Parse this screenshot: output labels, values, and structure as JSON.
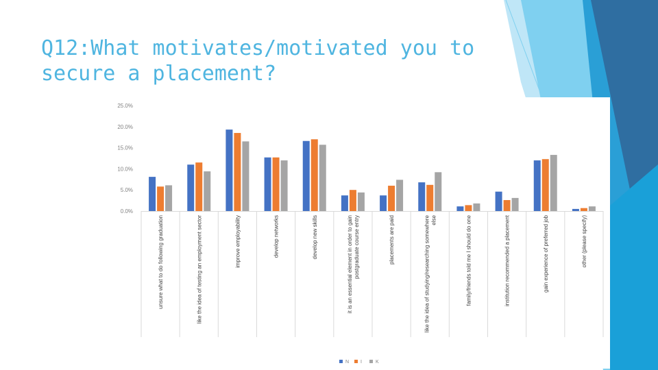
{
  "slide": {
    "title": "Q12:What motivates/motivated you to\nsecure a placement?"
  },
  "colors": {
    "title": "#4fb5e0",
    "decor_dark": "#2f6ea1",
    "decor_mid": "#2a9fd6",
    "decor_light": "#7fd0f0",
    "decor_pale": "#bfe6f7"
  },
  "chart_data": {
    "type": "bar",
    "title": "",
    "xlabel": "",
    "ylabel": "",
    "ylim": [
      0,
      25
    ],
    "yticks": [
      "0.0%",
      "5.0%",
      "10.0%",
      "15.0%",
      "20.0%",
      "25.0%"
    ],
    "grid": false,
    "legend_position": "bottom",
    "categories": [
      [
        "unsure what to do following graduation"
      ],
      [
        "like the idea of testing an employment sector"
      ],
      [
        "improve employability"
      ],
      [
        "develop networks"
      ],
      [
        "develop new skills"
      ],
      [
        "it is an essential element in order to gain",
        "postgraduate course entry"
      ],
      [
        "placements are paid"
      ],
      [
        "like the idea of studying/researching somewhere",
        "else"
      ],
      [
        "family/friends told me I should do one"
      ],
      [
        "institution recommended a placement"
      ],
      [
        "gain experience of preferred job"
      ],
      [
        "other (please specify)"
      ]
    ],
    "series": [
      {
        "name": "N",
        "color": "#4472c4",
        "values": [
          8.1,
          11.0,
          19.3,
          12.7,
          16.6,
          3.7,
          3.7,
          6.8,
          1.1,
          4.6,
          12.0,
          0.5
        ]
      },
      {
        "name": "I",
        "color": "#ed7d31",
        "values": [
          5.8,
          11.5,
          18.5,
          12.7,
          17.0,
          5.0,
          6.0,
          6.2,
          1.4,
          2.6,
          12.3,
          0.7
        ]
      },
      {
        "name": "K",
        "color": "#a5a5a5",
        "values": [
          6.1,
          9.4,
          16.5,
          12.0,
          15.7,
          4.4,
          7.4,
          9.2,
          1.8,
          3.1,
          13.3,
          1.1
        ]
      }
    ]
  }
}
